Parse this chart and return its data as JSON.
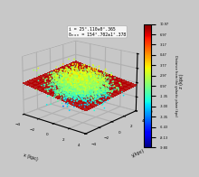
{
  "annotation_line1": "i = 25°.110±0°.365",
  "annotation_line2": "δₙₒₙ = 154°.702±1°.378",
  "xlabel": "x (kpc)",
  "ylabel": "y(kpc)",
  "zlabel": "z (kpc)",
  "colorbar_label": "Distance from the galactic plane (kpc)",
  "colorbar_ticklabels": [
    "10.97",
    "6.97",
    "3.17",
    "0.47",
    "3.77",
    "2.97",
    "0.97",
    "-1.35",
    "-3.00",
    "-3.35",
    "-6.43",
    "-8.13",
    "-9.80"
  ],
  "vmin": -9.8,
  "vmax": 10.97,
  "xlim": [
    -4,
    4
  ],
  "ylim": [
    -4,
    4
  ],
  "zlim": [
    -10,
    10
  ],
  "n_points": 4000,
  "plane_alpha": 0.85,
  "scatter_size": 1.5,
  "background_color": "#c8c8c8",
  "seed": 123,
  "elev": 18,
  "azim": -50
}
